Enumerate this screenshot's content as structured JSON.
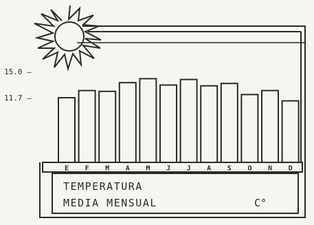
{
  "chart_data": {
    "type": "bar",
    "title": "TEMPERATURA MEDIA MENSUAL",
    "unit": "C°",
    "categories": [
      "E",
      "F",
      "M",
      "A",
      "M",
      "J",
      "J",
      "A",
      "S",
      "O",
      "N",
      "D"
    ],
    "values": [
      11.7,
      12.6,
      12.5,
      13.6,
      14.1,
      13.3,
      14.0,
      13.2,
      13.5,
      12.1,
      12.6,
      11.3
    ],
    "y_marks": [
      {
        "label": "15.0 —",
        "value": 15.0
      },
      {
        "label": "11.7 —",
        "value": 11.7
      }
    ],
    "grid": false,
    "colors": {
      "ink": "#2a2a2a",
      "paper": "#f7f5ef"
    }
  }
}
